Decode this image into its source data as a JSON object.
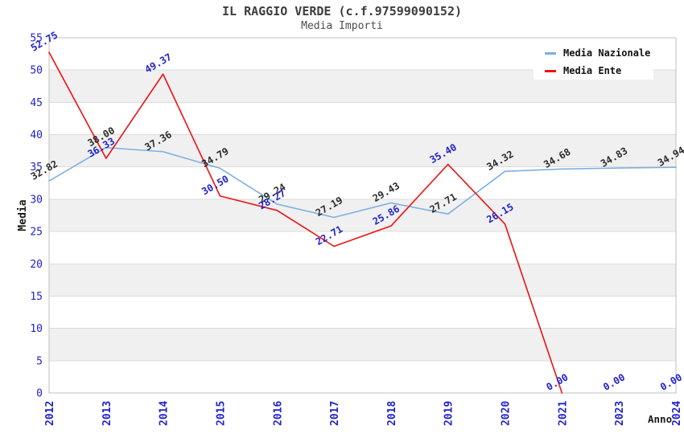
{
  "title": "IL RAGGIO VERDE (c.f.97599090152)",
  "subtitle": "Media Importi",
  "chart_data": {
    "type": "line",
    "categories": [
      "2012",
      "2013",
      "2014",
      "2015",
      "2016",
      "2017",
      "2018",
      "2019",
      "2020",
      "2021",
      "2023",
      "2024"
    ],
    "series": [
      {
        "name": "Media Nazionale",
        "color": "#7cb0e2",
        "label_color": "#2b2b2b",
        "values": [
          32.82,
          38.0,
          37.36,
          34.79,
          29.24,
          27.19,
          29.43,
          27.71,
          34.32,
          34.68,
          34.83,
          34.94
        ]
      },
      {
        "name": "Media Ente",
        "color": "#ee1111",
        "label_color": "#2222cc",
        "values": [
          52.75,
          36.33,
          49.37,
          30.5,
          28.27,
          22.71,
          25.86,
          35.4,
          26.15,
          0.0,
          0.0,
          0.0
        ],
        "line_end_index": 9
      }
    ],
    "title": "IL RAGGIO VERDE (c.f.97599090152)",
    "subtitle": "Media Importi",
    "xlabel": "Anno",
    "ylabel": "Media",
    "ylim": [
      0,
      55
    ],
    "ytick_step": 5,
    "grid": "horizontal-bands-alternating",
    "legend_position": "top-right",
    "data_label_format": "2-decimals",
    "data_label_rotation_deg": -30,
    "x_tick_rotation_deg": -90
  },
  "colors": {
    "background": "#ffffff",
    "band": "#f0f0f0",
    "grid": "#dcdcdc",
    "border": "#bfbfbf",
    "tick_label": "#2222cc",
    "title": "#3d3d3d",
    "subtitle": "#4d4d4d",
    "axis_title": "#1a1a1a",
    "legend_text": "#111111"
  }
}
